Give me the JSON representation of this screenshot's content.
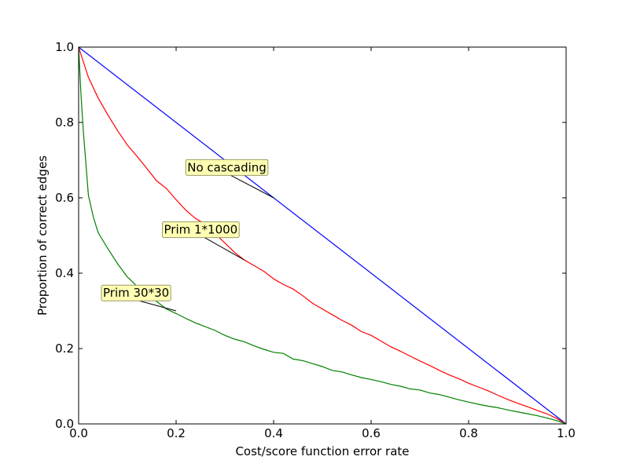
{
  "chart_data": {
    "type": "line",
    "xlabel": "Cost/score function error rate",
    "ylabel": "Proportion of correct edges",
    "xlim": [
      0.0,
      1.0
    ],
    "ylim": [
      0.0,
      1.0
    ],
    "xticks": [
      "0.0",
      "0.2",
      "0.4",
      "0.6",
      "0.8",
      "1.0"
    ],
    "yticks": [
      "0.0",
      "0.2",
      "0.4",
      "0.6",
      "0.8",
      "1.0"
    ],
    "grid": false,
    "series": [
      {
        "name": "No cascading",
        "color": "#0000ff",
        "x": [
          0.0,
          1.0
        ],
        "y": [
          1.0,
          0.0
        ]
      },
      {
        "name": "Prim 1*1000",
        "color": "#ff0000",
        "x": [
          0.0,
          0.02,
          0.04,
          0.06,
          0.08,
          0.1,
          0.12,
          0.14,
          0.16,
          0.18,
          0.2,
          0.22,
          0.24,
          0.26,
          0.28,
          0.3,
          0.32,
          0.34,
          0.36,
          0.38,
          0.4,
          0.42,
          0.44,
          0.46,
          0.48,
          0.5,
          0.52,
          0.54,
          0.56,
          0.58,
          0.6,
          0.62,
          0.64,
          0.66,
          0.68,
          0.7,
          0.72,
          0.74,
          0.76,
          0.78,
          0.8,
          0.82,
          0.84,
          0.86,
          0.88,
          0.9,
          0.92,
          0.94,
          0.96,
          0.98,
          1.0
        ],
        "y": [
          1.0,
          0.92,
          0.865,
          0.82,
          0.778,
          0.74,
          0.71,
          0.678,
          0.645,
          0.625,
          0.595,
          0.567,
          0.545,
          0.53,
          0.505,
          0.48,
          0.455,
          0.435,
          0.42,
          0.405,
          0.385,
          0.37,
          0.358,
          0.34,
          0.32,
          0.305,
          0.29,
          0.275,
          0.262,
          0.245,
          0.235,
          0.22,
          0.205,
          0.193,
          0.18,
          0.167,
          0.155,
          0.142,
          0.13,
          0.12,
          0.108,
          0.098,
          0.088,
          0.076,
          0.065,
          0.055,
          0.046,
          0.036,
          0.027,
          0.015,
          0.0
        ]
      },
      {
        "name": "Prim 30*30",
        "color": "#008000",
        "x": [
          0.0,
          0.005,
          0.01,
          0.015,
          0.02,
          0.03,
          0.04,
          0.06,
          0.08,
          0.1,
          0.12,
          0.14,
          0.16,
          0.18,
          0.2,
          0.22,
          0.24,
          0.26,
          0.28,
          0.3,
          0.32,
          0.34,
          0.36,
          0.38,
          0.4,
          0.42,
          0.44,
          0.46,
          0.48,
          0.5,
          0.52,
          0.54,
          0.56,
          0.58,
          0.6,
          0.62,
          0.64,
          0.66,
          0.68,
          0.7,
          0.72,
          0.74,
          0.76,
          0.78,
          0.8,
          0.82,
          0.84,
          0.86,
          0.88,
          0.9,
          0.92,
          0.94,
          0.96,
          0.98,
          1.0
        ],
        "y": [
          1.0,
          0.87,
          0.77,
          0.69,
          0.607,
          0.55,
          0.508,
          0.465,
          0.425,
          0.39,
          0.365,
          0.345,
          0.325,
          0.305,
          0.293,
          0.28,
          0.268,
          0.258,
          0.248,
          0.235,
          0.225,
          0.218,
          0.207,
          0.198,
          0.19,
          0.187,
          0.172,
          0.168,
          0.16,
          0.152,
          0.142,
          0.138,
          0.13,
          0.123,
          0.118,
          0.112,
          0.105,
          0.1,
          0.093,
          0.09,
          0.082,
          0.078,
          0.071,
          0.064,
          0.058,
          0.052,
          0.047,
          0.043,
          0.037,
          0.032,
          0.027,
          0.022,
          0.016,
          0.009,
          0.0
        ]
      }
    ],
    "annotations": [
      {
        "text": "No cascading",
        "text_xy": [
          0.223,
          0.67
        ],
        "point_xy": [
          0.4,
          0.6
        ]
      },
      {
        "text": "Prim 1*1000",
        "text_xy": [
          0.175,
          0.505
        ],
        "point_xy": [
          0.34,
          0.435
        ]
      },
      {
        "text": "Prim 30*30",
        "text_xy": [
          0.05,
          0.337
        ],
        "point_xy": [
          0.2,
          0.3
        ]
      }
    ],
    "annotation_box_color": "#ffffb3",
    "annotation_border_color": "#999966"
  }
}
